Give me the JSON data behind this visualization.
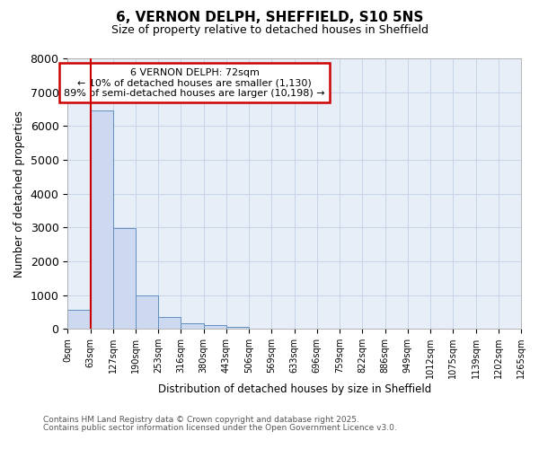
{
  "title": "6, VERNON DELPH, SHEFFIELD, S10 5NS",
  "subtitle": "Size of property relative to detached houses in Sheffield",
  "xlabel": "Distribution of detached houses by size in Sheffield",
  "ylabel": "Number of detached properties",
  "bar_color": "#ccd9f0",
  "bar_edge_color": "#6090c0",
  "bar_values": [
    560,
    6450,
    2980,
    980,
    360,
    160,
    100,
    55,
    0,
    0,
    0,
    0,
    0,
    0,
    0,
    0,
    0,
    0,
    0,
    0
  ],
  "categories": [
    "0sqm",
    "63sqm",
    "127sqm",
    "190sqm",
    "253sqm",
    "316sqm",
    "380sqm",
    "443sqm",
    "506sqm",
    "569sqm",
    "633sqm",
    "696sqm",
    "759sqm",
    "822sqm",
    "886sqm",
    "949sqm",
    "1012sqm",
    "1075sqm",
    "1139sqm",
    "1202sqm",
    "1265sqm"
  ],
  "ylim": [
    0,
    8000
  ],
  "yticks": [
    0,
    1000,
    2000,
    3000,
    4000,
    5000,
    6000,
    7000,
    8000
  ],
  "red_line_x": 1,
  "annotation_title": "6 VERNON DELPH: 72sqm",
  "annotation_line1": "← 10% of detached houses are smaller (1,130)",
  "annotation_line2": "89% of semi-detached houses are larger (10,198) →",
  "annotation_box_color": "#ffffff",
  "annotation_box_edge": "#cc0000",
  "red_line_color": "#cc0000",
  "grid_color": "#c8d4e8",
  "footnote1": "Contains HM Land Registry data © Crown copyright and database right 2025.",
  "footnote2": "Contains public sector information licensed under the Open Government Licence v3.0.",
  "background_color": "#e8eef8",
  "fig_background": "#ffffff"
}
